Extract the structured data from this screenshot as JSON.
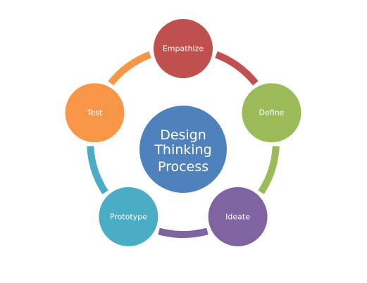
{
  "title_lines": [
    "Design",
    "Thinking",
    "Process"
  ],
  "center_color": "#4f81bd",
  "stages": [
    {
      "label": "Empathize",
      "color": "#c0504d"
    },
    {
      "label": "Define",
      "color": "#9bbb59"
    },
    {
      "label": "Ideate",
      "color": "#8064a2"
    },
    {
      "label": "Prototype",
      "color": "#4bacc6"
    },
    {
      "label": "Test",
      "color": "#f79646"
    }
  ]
}
